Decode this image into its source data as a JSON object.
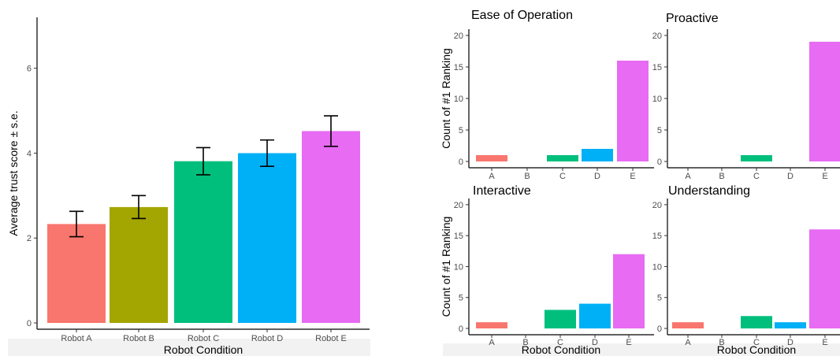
{
  "chart_data": [
    {
      "type": "bar",
      "title": "",
      "xlabel": "Robot Condition",
      "ylabel": "Average trust score ± s.e.",
      "ylim": [
        0,
        7.2
      ],
      "yticks": [
        0,
        2,
        4,
        6
      ],
      "grid": false,
      "legend": "none",
      "error_bars": true,
      "categories": [
        "Robot A",
        "Robot B",
        "Robot C",
        "Robot D",
        "Robot E"
      ],
      "values": [
        2.33,
        2.73,
        3.81,
        4.0,
        4.52
      ],
      "errors": [
        0.3,
        0.27,
        0.32,
        0.31,
        0.36
      ],
      "colors": [
        "#F8766D",
        "#A3A500",
        "#00BF7D",
        "#00B0F6",
        "#E76BF3"
      ]
    },
    {
      "type": "bar",
      "title": "Ease of Operation",
      "xlabel": "",
      "ylabel": "Count of #1 Ranking",
      "ylim": [
        0,
        21
      ],
      "yticks": [
        0,
        5,
        10,
        15,
        20
      ],
      "grid": false,
      "categories": [
        "A",
        "B",
        "C",
        "D",
        "E"
      ],
      "values": [
        1,
        0,
        1,
        2,
        16
      ],
      "colors": [
        "#F8766D",
        "#A3A500",
        "#00BF7D",
        "#00B0F6",
        "#E76BF3"
      ]
    },
    {
      "type": "bar",
      "title": "Proactive",
      "xlabel": "",
      "ylabel": "",
      "ylim": [
        0,
        21
      ],
      "yticks": [
        0,
        5,
        10,
        15,
        20
      ],
      "grid": false,
      "categories": [
        "A",
        "B",
        "C",
        "D",
        "E"
      ],
      "values": [
        0,
        0,
        1,
        0,
        19
      ],
      "colors": [
        "#F8766D",
        "#A3A500",
        "#00BF7D",
        "#00B0F6",
        "#E76BF3"
      ]
    },
    {
      "type": "bar",
      "title": "Interactive",
      "xlabel": "Robot Condition",
      "ylabel": "Count of #1 Ranking",
      "ylim": [
        0,
        21
      ],
      "yticks": [
        0,
        5,
        10,
        15,
        20
      ],
      "grid": false,
      "categories": [
        "A",
        "B",
        "C",
        "D",
        "E"
      ],
      "values": [
        1,
        0,
        3,
        4,
        12
      ],
      "colors": [
        "#F8766D",
        "#A3A500",
        "#00BF7D",
        "#00B0F6",
        "#E76BF3"
      ]
    },
    {
      "type": "bar",
      "title": "Understanding",
      "xlabel": "Robot Condition",
      "ylabel": "",
      "ylim": [
        0,
        21
      ],
      "yticks": [
        0,
        5,
        10,
        15,
        20
      ],
      "grid": false,
      "categories": [
        "A",
        "B",
        "C",
        "D",
        "E"
      ],
      "values": [
        1,
        0,
        2,
        1,
        16
      ],
      "colors": [
        "#F8766D",
        "#A3A500",
        "#00BF7D",
        "#00B0F6",
        "#E76BF3"
      ]
    }
  ]
}
